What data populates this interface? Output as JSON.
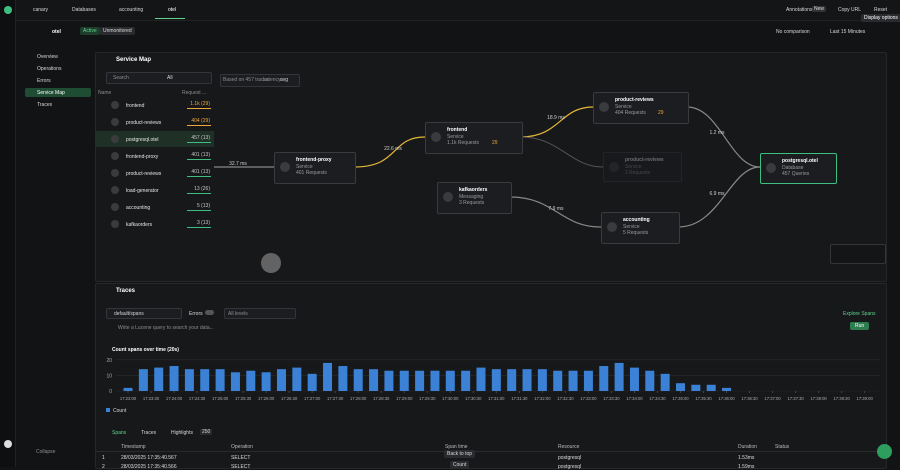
{
  "tabs": [
    "canary",
    "Databases",
    "accounting",
    "otel"
  ],
  "toolbar": {
    "annotations": "Annotations",
    "new_badge": "New",
    "copy_url": "Copy URL",
    "reset": "Reset",
    "tooltip": "Display options"
  },
  "header": {
    "title": "otel",
    "status": "Active",
    "monitoring": "Unmonitored",
    "comparison": "No comparison",
    "time_range": "Last 15 Minutes"
  },
  "sidebar": {
    "items": [
      "Overview",
      "Operations",
      "Errors",
      "Service Map",
      "Traces"
    ],
    "active": 3,
    "collapse": "Collapse"
  },
  "service_map": {
    "title": "Service Map",
    "search": "Search",
    "filter": "All",
    "columns": [
      "Name",
      "Request ..."
    ],
    "rows": [
      {
        "name": "frontend",
        "requests": "1.1k (29)",
        "warning": true
      },
      {
        "name": "product-reviews",
        "requests": "404 (29)",
        "warning": true
      },
      {
        "name": "postgresql.otel",
        "requests": "457 (13)",
        "warning": false
      },
      {
        "name": "frontend-proxy",
        "requests": "401 (13)",
        "warning": false
      },
      {
        "name": "product-reviews",
        "requests": "401 (13)",
        "warning": false
      },
      {
        "name": "load-generator",
        "requests": "13 (26)",
        "warning": false
      },
      {
        "name": "accounting",
        "requests": "5 (13)",
        "warning": false
      },
      {
        "name": "kafkaorders",
        "requests": "3 (13)",
        "warning": false
      }
    ],
    "selected": 2,
    "traces_note": "Based on 457 traces",
    "latency_label": "Latency",
    "latency_mode": "avg",
    "nodes": [
      {
        "name": "frontend-proxy",
        "kind": "Service",
        "stat": "401 Requests"
      },
      {
        "name": "frontend",
        "kind": "Service",
        "stat": "1.1k Requests",
        "warn": "29"
      },
      {
        "name": "product-reviews",
        "kind": "Service",
        "stat": "404 Requests",
        "warn": "29"
      },
      {
        "name": "product-reviews",
        "kind": "Service",
        "stat": "2 Requests"
      },
      {
        "name": "postgresql.otel",
        "kind": "Database",
        "stat": "457 Queries"
      },
      {
        "name": "kafkaorders",
        "kind": "Messaging",
        "stat": "3 Requests"
      },
      {
        "name": "accounting",
        "kind": "Service",
        "stat": "5 Requests"
      }
    ],
    "edges": [
      "32.7 ms",
      "22.6 ms",
      "18.9 ms",
      "1.2 ms",
      "6.9 ms",
      "7.9 ms"
    ]
  },
  "traces": {
    "title": "Traces",
    "source": "default/spans",
    "errors": "Errors",
    "levels": "All levels",
    "explore": "Explore Spans",
    "query_placeholder": "Write a Lucene query to search your data...",
    "run": "Run"
  },
  "chart_data": {
    "type": "bar",
    "title": "Count spans over time (20s)",
    "color": "#3b82d6",
    "legend": "Count",
    "x": [
      "17:23:00",
      "17:23:20",
      "17:23:40",
      "17:24:00",
      "17:24:20",
      "17:24:40",
      "17:25:00",
      "17:25:20",
      "17:25:40",
      "17:26:00",
      "17:26:20",
      "17:26:40",
      "17:27:00",
      "17:27:20",
      "17:27:40",
      "17:28:00",
      "17:28:20",
      "17:28:40",
      "17:29:00",
      "17:29:20",
      "17:29:40",
      "17:30:00",
      "17:30:20",
      "17:30:40",
      "17:31:00",
      "17:31:20",
      "17:31:40",
      "17:32:00",
      "17:32:20",
      "17:32:40",
      "17:33:00",
      "17:33:20",
      "17:33:40",
      "17:34:00",
      "17:34:20",
      "17:34:40",
      "17:35:00",
      "17:35:20",
      "17:35:40",
      "17:36:00"
    ],
    "values": [
      2,
      14,
      15,
      16,
      14,
      14,
      14,
      12,
      13,
      12,
      14,
      15,
      11,
      18,
      16,
      14,
      14,
      13,
      13,
      13,
      13,
      13,
      13,
      15,
      14,
      14,
      14,
      14,
      13,
      13,
      13,
      16,
      18,
      15,
      13,
      11,
      5,
      4,
      4,
      2
    ],
    "xlim": [
      "17:22:30",
      "17:39:20"
    ],
    "xticks": [
      "17:23:00",
      "17:23:30",
      "17:24:00",
      "17:24:30",
      "17:25:00",
      "17:25:30",
      "17:26:00",
      "17:26:30",
      "17:27:00",
      "17:27:30",
      "17:28:00",
      "17:28:30",
      "17:29:00",
      "17:29:30",
      "17:30:00",
      "17:30:30",
      "17:31:00",
      "17:31:30",
      "17:32:00",
      "17:32:30",
      "17:33:00",
      "17:33:30",
      "17:34:00",
      "17:34:30",
      "17:35:00",
      "17:35:30",
      "17:36:00",
      "17:36:30",
      "17:37:00",
      "17:37:30",
      "17:38:00",
      "17:38:30",
      "17:39:00"
    ],
    "ylim": [
      0,
      25
    ],
    "yticks": [
      0,
      10,
      20
    ],
    "grid": true
  },
  "results": {
    "tabs": [
      "Spans",
      "Traces",
      "Highlights"
    ],
    "highlights_count": "250",
    "columns": [
      "Timestamp",
      "Operation",
      "Span time",
      "Resource",
      "Duration",
      "Status"
    ],
    "rows": [
      [
        "1",
        "28/03/2025 17:35:40.567",
        "SELECT",
        "postgresql",
        "1.53ms"
      ],
      [
        "2",
        "28/03/2025 17:35:40.566",
        "SELECT",
        "postgresql",
        "1.59ms"
      ]
    ],
    "back_to_top": "Back to top",
    "count_button": "Count"
  }
}
